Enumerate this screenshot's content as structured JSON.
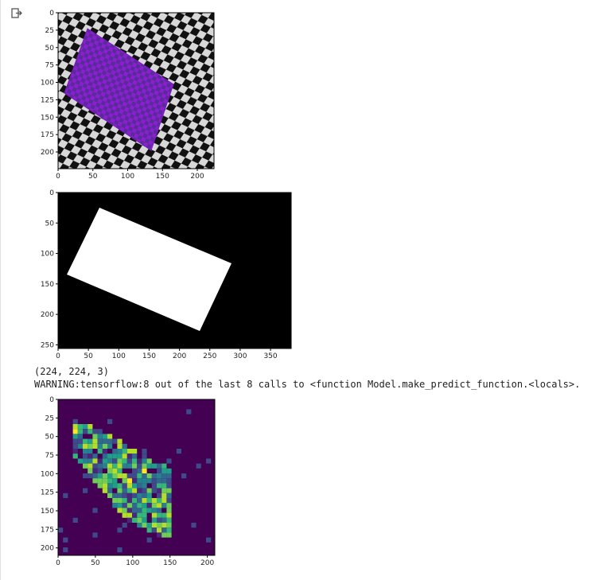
{
  "output": {
    "shape_text": "(224, 224, 3)",
    "warning_text": "WARNING:tensorflow:8 out of the last 8 calls to <function Model.make_predict_function.<locals>."
  },
  "figures": [
    {
      "image": "checkerboard with purple-tinted rotated rectangle overlay",
      "x_ticks": [
        "0",
        "50",
        "100",
        "150",
        "200"
      ],
      "y_ticks": [
        "0",
        "25",
        "50",
        "75",
        "100",
        "125",
        "150",
        "175",
        "200"
      ]
    },
    {
      "image": "binary mask: white rotated rectangle on black",
      "x_ticks": [
        "0",
        "50",
        "100",
        "150",
        "200",
        "250",
        "300",
        "350"
      ],
      "y_ticks": [
        "0",
        "50",
        "100",
        "150",
        "200",
        "250"
      ]
    },
    {
      "image": "viridis heatmap of activations",
      "x_ticks": [
        "0",
        "50",
        "100",
        "150",
        "200"
      ],
      "y_ticks": [
        "0",
        "25",
        "50",
        "75",
        "100",
        "125",
        "150",
        "175",
        "200"
      ]
    }
  ],
  "colors": {
    "purple_overlay": "#9b1fd8",
    "viridis_low": "#440154",
    "viridis_mid": "#21918c",
    "viridis_high": "#fde725"
  },
  "icons": {
    "run": "output-icon"
  }
}
